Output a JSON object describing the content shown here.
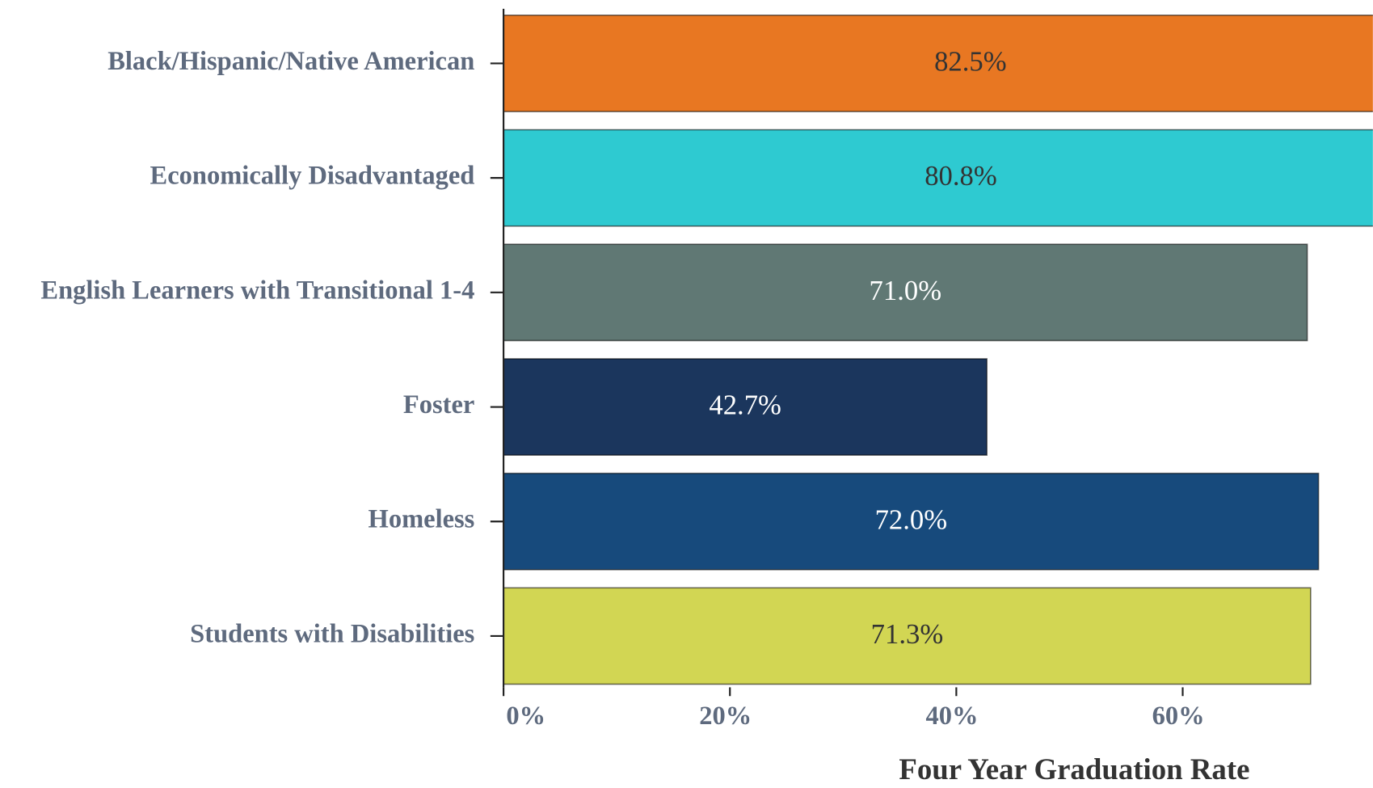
{
  "chart_data": {
    "type": "hbar",
    "categories": [
      "Black/Hispanic/Native American",
      "Economically Disadvantaged",
      "English Learners with Transitional 1-4",
      "Foster",
      "Homeless",
      "Students with Disabilities"
    ],
    "values": [
      82.5,
      80.8,
      71.0,
      42.7,
      72.0,
      71.3
    ],
    "value_labels": [
      "82.5%",
      "80.8%",
      "71.0%",
      "42.7%",
      "72.0%",
      "71.3%"
    ],
    "colors": [
      "#e87722",
      "#2ecad1",
      "#607874",
      "#1b365d",
      "#174a7c",
      "#d2d653"
    ],
    "xlim": [
      0,
      76.8
    ],
    "xticks": [
      {
        "value": 0,
        "label": "0%"
      },
      {
        "value": 20,
        "label": "20%"
      },
      {
        "value": 40,
        "label": "40%"
      },
      {
        "value": 60,
        "label": "60%"
      }
    ],
    "x_label": "Four Year Graduation Rate"
  }
}
